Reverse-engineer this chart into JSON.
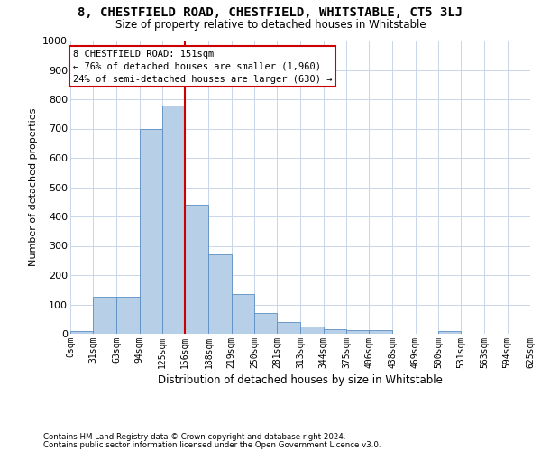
{
  "title": "8, CHESTFIELD ROAD, CHESTFIELD, WHITSTABLE, CT5 3LJ",
  "subtitle": "Size of property relative to detached houses in Whitstable",
  "xlabel": "Distribution of detached houses by size in Whitstable",
  "ylabel": "Number of detached properties",
  "bar_color": "#b8cfe8",
  "bar_edge_color": "#5b8ec4",
  "background_color": "#ffffff",
  "grid_color": "#c8d4e8",
  "vline_color": "#cc0000",
  "vline_bin_index": 5,
  "annotation_box_color": "#cc0000",
  "annotation_text_line1": "8 CHESTFIELD ROAD: 151sqm",
  "annotation_text_line2": "← 76% of detached houses are smaller (1,960)",
  "annotation_text_line3": "24% of semi-detached houses are larger (630) →",
  "bins": [
    0,
    31,
    63,
    94,
    125,
    156,
    188,
    219,
    250,
    281,
    313,
    344,
    375,
    406,
    438,
    469,
    500,
    531,
    563,
    594,
    625
  ],
  "counts": [
    8,
    125,
    125,
    700,
    780,
    440,
    270,
    135,
    70,
    40,
    25,
    15,
    13,
    13,
    0,
    0,
    8,
    0,
    0,
    0
  ],
  "tick_labels": [
    "0sqm",
    "31sqm",
    "63sqm",
    "94sqm",
    "125sqm",
    "156sqm",
    "188sqm",
    "219sqm",
    "250sqm",
    "281sqm",
    "313sqm",
    "344sqm",
    "375sqm",
    "406sqm",
    "438sqm",
    "469sqm",
    "500sqm",
    "531sqm",
    "563sqm",
    "594sqm",
    "625sqm"
  ],
  "ylim": [
    0,
    1000
  ],
  "yticks": [
    0,
    100,
    200,
    300,
    400,
    500,
    600,
    700,
    800,
    900,
    1000
  ],
  "footer_line1": "Contains HM Land Registry data © Crown copyright and database right 2024.",
  "footer_line2": "Contains public sector information licensed under the Open Government Licence v3.0."
}
